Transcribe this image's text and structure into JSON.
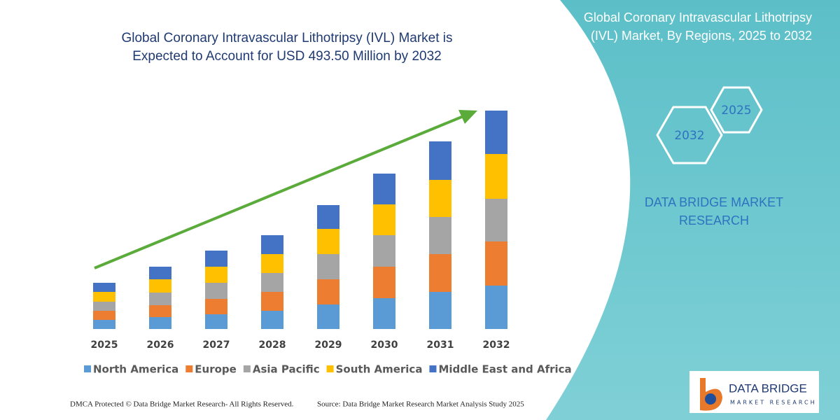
{
  "chart_data": {
    "type": "bar",
    "stacked": true,
    "title": "Global Coronary Intravascular Lithotripsy (IVL) Market is Expected to Account for USD 493.50 Million by 2032",
    "categories": [
      "2025",
      "2026",
      "2027",
      "2028",
      "2029",
      "2030",
      "2031",
      "2032"
    ],
    "series": [
      {
        "name": "North America",
        "color": "#5b9bd5",
        "values": [
          13,
          17,
          21,
          26,
          35,
          44,
          53,
          62
        ]
      },
      {
        "name": "Europe",
        "color": "#ed7d31",
        "values": [
          13,
          17,
          22,
          27,
          36,
          45,
          54,
          63
        ]
      },
      {
        "name": "Asia Pacific",
        "color": "#a5a5a5",
        "values": [
          13,
          18,
          23,
          27,
          36,
          45,
          53,
          61
        ]
      },
      {
        "name": "South America",
        "color": "#ffc000",
        "values": [
          14,
          19,
          23,
          27,
          36,
          44,
          53,
          64
        ]
      },
      {
        "name": "Middle East and Africa",
        "color": "#4472c4",
        "values": [
          13,
          18,
          23,
          27,
          34,
          44,
          55,
          62
        ]
      }
    ],
    "legend": "bottom",
    "grid": false,
    "trend_arrow_color": "#5aab3a"
  },
  "panel": {
    "title": "Global Coronary Intravascular Lithotripsy (IVL) Market, By Regions, 2025 to 2032",
    "hex_labels": [
      "2032",
      "2025"
    ],
    "brand": "DATA BRIDGE MARKET RESEARCH"
  },
  "logo": {
    "name": "DATA BRIDGE",
    "tagline": "MARKET RESEARCH"
  },
  "footer": {
    "rights": "DMCA Protected © Data Bridge Market Research-  All Rights Reserved.",
    "source": "Source: Data Bridge Market Research  Market Analysis Study 2025"
  }
}
